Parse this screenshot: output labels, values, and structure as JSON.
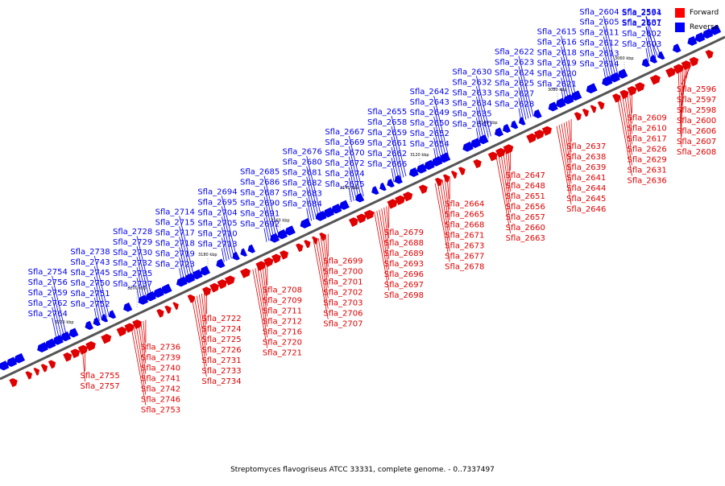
{
  "legend": [
    {
      "label": "Forward",
      "color": "#ff0000"
    },
    {
      "label": "Reverse",
      "color": "#0000ff"
    }
  ],
  "caption": "Streptomyces flavogriseus ATCC 33331, complete genome. - 0..7337497",
  "axis_ticks": [
    "3220 kbp",
    "3200 kbp",
    "3180 kbp",
    "3160 kbp",
    "3140 kbp",
    "3120 kbp",
    "3100 kbp",
    "3080 kbp",
    "3060 kbp"
  ],
  "colors": {
    "forward": "#e00000",
    "reverse": "#0000ee",
    "backbone": "#555555"
  },
  "reverse_genes": [
    "Sfla_2581",
    "Sfla_2587",
    "Sfla_2594",
    "Sfla_2601",
    "Sfla_2602",
    "Sfla_2603",
    "Sfla_2604",
    "Sfla_2605",
    "Sfla_2611",
    "Sfla_2612",
    "Sfla_2613",
    "Sfla_2614",
    "Sfla_2615",
    "Sfla_2616",
    "Sfla_2618",
    "Sfla_2619",
    "Sfla_2620",
    "Sfla_2621",
    "Sfla_2622",
    "Sfla_2623",
    "Sfla_2624",
    "Sfla_2625",
    "Sfla_2627",
    "Sfla_2628",
    "Sfla_2630",
    "Sfla_2632",
    "Sfla_2633",
    "Sfla_2634",
    "Sfla_2635",
    "Sfla_2640",
    "Sfla_2642",
    "Sfla_2643",
    "Sfla_2649",
    "Sfla_2650",
    "Sfla_2652",
    "Sfla_2654",
    "Sfla_2655",
    "Sfla_2658",
    "Sfla_2659",
    "Sfla_2661",
    "Sfla_2662",
    "Sfla_2666",
    "Sfla_2667",
    "Sfla_2669",
    "Sfla_2670",
    "Sfla_2672",
    "Sfla_2674",
    "Sfla_2675",
    "Sfla_2676",
    "Sfla_2680",
    "Sfla_2681",
    "Sfla_2682",
    "Sfla_2683",
    "Sfla_2684",
    "Sfla_2685",
    "Sfla_2686",
    "Sfla_2687",
    "Sfla_2690",
    "Sfla_2691",
    "Sfla_2692",
    "Sfla_2694",
    "Sfla_2695",
    "Sfla_2704",
    "Sfla_2705",
    "Sfla_2710",
    "Sfla_2713",
    "Sfla_2714",
    "Sfla_2715",
    "Sfla_2717",
    "Sfla_2718",
    "Sfla_2719",
    "Sfla_2723",
    "Sfla_2728",
    "Sfla_2729",
    "Sfla_2730",
    "Sfla_2732",
    "Sfla_2735",
    "Sfla_2737",
    "Sfla_2738",
    "Sfla_2743",
    "Sfla_2745",
    "Sfla_2750",
    "Sfla_2751",
    "Sfla_2752",
    "Sfla_2754",
    "Sfla_2756",
    "Sfla_2759",
    "Sfla_2762",
    "Sfla_2764"
  ],
  "forward_genes": [
    "Sfla_2596",
    "Sfla_2597",
    "Sfla_2598",
    "Sfla_2600",
    "Sfla_2606",
    "Sfla_2607",
    "Sfla_2608",
    "Sfla_2609",
    "Sfla_2610",
    "Sfla_2617",
    "Sfla_2626",
    "Sfla_2629",
    "Sfla_2631",
    "Sfla_2636",
    "Sfla_2637",
    "Sfla_2638",
    "Sfla_2639",
    "Sfla_2641",
    "Sfla_2644",
    "Sfla_2645",
    "Sfla_2646",
    "Sfla_2647",
    "Sfla_2648",
    "Sfla_2651",
    "Sfla_2656",
    "Sfla_2657",
    "Sfla_2660",
    "Sfla_2663",
    "Sfla_2664",
    "Sfla_2665",
    "Sfla_2668",
    "Sfla_2671",
    "Sfla_2673",
    "Sfla_2677",
    "Sfla_2678",
    "Sfla_2679",
    "Sfla_2688",
    "Sfla_2689",
    "Sfla_2693",
    "Sfla_2696",
    "Sfla_2697",
    "Sfla_2698",
    "Sfla_2699",
    "Sfla_2700",
    "Sfla_2701",
    "Sfla_2702",
    "Sfla_2703",
    "Sfla_2706",
    "Sfla_2707",
    "Sfla_2708",
    "Sfla_2709",
    "Sfla_2711",
    "Sfla_2712",
    "Sfla_2716",
    "Sfla_2720",
    "Sfla_2721",
    "Sfla_2722",
    "Sfla_2724",
    "Sfla_2725",
    "Sfla_2726",
    "Sfla_2731",
    "Sfla_2733",
    "Sfla_2734",
    "Sfla_2736",
    "Sfla_2739",
    "Sfla_2740",
    "Sfla_2741",
    "Sfla_2742",
    "Sfla_2746",
    "Sfla_2753",
    "Sfla_2755",
    "Sfla_2757"
  ]
}
